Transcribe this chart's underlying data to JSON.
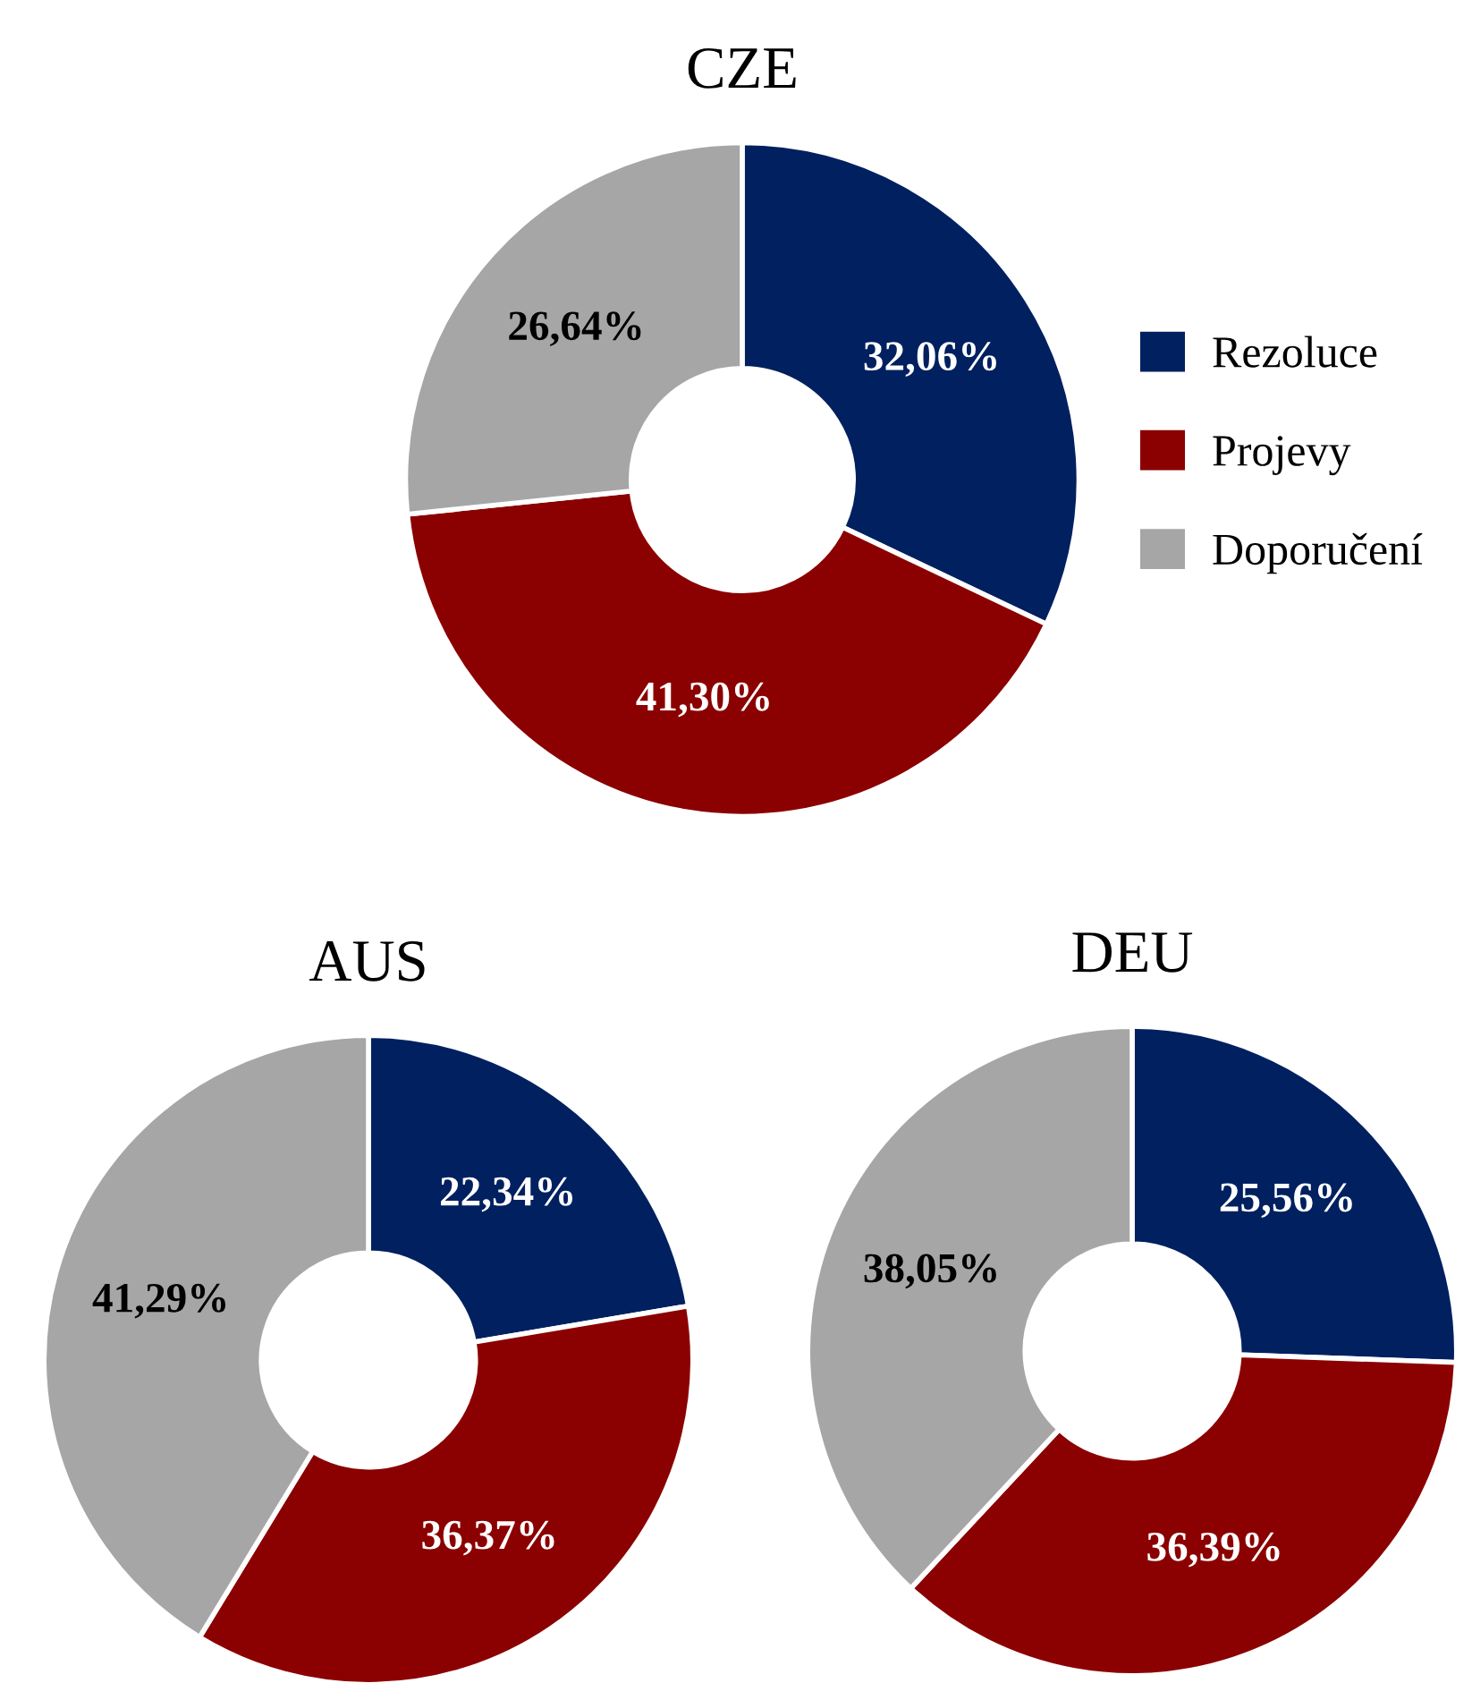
{
  "chart_data": [
    {
      "type": "donut",
      "title": "CZE",
      "categories": [
        "Rezoluce",
        "Projevy",
        "Doporučení"
      ],
      "values": [
        32.06,
        41.3,
        26.64
      ],
      "colors": [
        "#002060",
        "#8b0000",
        "#a6a6a6"
      ],
      "value_labels": [
        "32,06%",
        "41,30%",
        "26,64%"
      ],
      "legend": "right"
    },
    {
      "type": "donut",
      "title": "AUS",
      "categories": [
        null,
        null,
        null
      ],
      "values": [
        22.34,
        36.37,
        41.29
      ],
      "colors": [
        "#002060",
        "#8b0000",
        "#a6a6a6"
      ],
      "value_labels": [
        "22,34%",
        "36,37%",
        "41,29%"
      ]
    },
    {
      "type": "donut",
      "title": "DEU",
      "categories": [
        null,
        null,
        null
      ],
      "values": [
        25.56,
        36.39,
        38.05
      ],
      "colors": [
        "#002060",
        "#8b0000",
        "#a6a6a6"
      ],
      "value_labels": [
        "25,56%",
        "36,39%",
        "38,05%"
      ]
    }
  ]
}
